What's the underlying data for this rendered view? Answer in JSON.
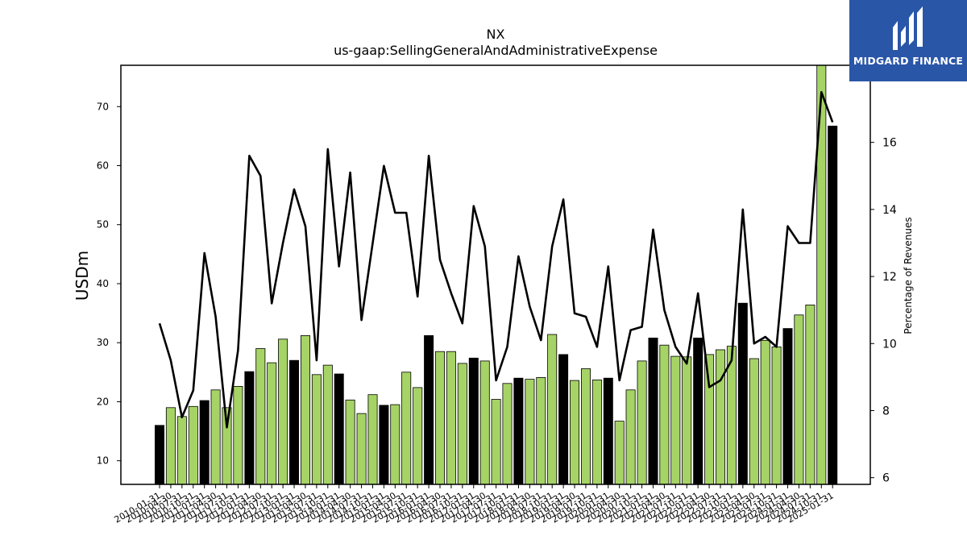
{
  "chart_data": {
    "type": "bar",
    "title": "NX",
    "subtitle": "us-gaap:SellingGeneralAndAdministrativeExpense",
    "ylabel": "USDm",
    "y2label": "Percentage of Revenues",
    "ylim": [
      6,
      77
    ],
    "y2lim": [
      5.8,
      18.3
    ],
    "yticks": [
      10,
      20,
      30,
      40,
      50,
      60,
      70
    ],
    "y2ticks": [
      6,
      8,
      10,
      12,
      14,
      16
    ],
    "x": [
      "2010-01-31",
      "2010-04-30",
      "2010-07-31",
      "2010-10-31",
      "2011-01-31",
      "2011-04-30",
      "2011-07-31",
      "2011-10-31",
      "2012-01-31",
      "2012-04-30",
      "2012-07-31",
      "2012-10-31",
      "2013-01-31",
      "2013-04-30",
      "2013-07-31",
      "2013-10-31",
      "2014-01-31",
      "2014-04-30",
      "2014-07-31",
      "2014-10-31",
      "2015-01-31",
      "2015-04-30",
      "2015-07-31",
      "2015-10-31",
      "2016-01-31",
      "2016-04-30",
      "2016-07-31",
      "2016-10-31",
      "2017-01-31",
      "2017-04-30",
      "2017-07-31",
      "2017-10-31",
      "2018-01-31",
      "2018-04-30",
      "2018-07-31",
      "2018-10-31",
      "2019-01-31",
      "2019-04-30",
      "2019-07-31",
      "2019-10-31",
      "2020-01-31",
      "2020-04-30",
      "2020-07-31",
      "2020-10-31",
      "2021-01-31",
      "2021-04-30",
      "2021-07-31",
      "2021-10-31",
      "2022-01-31",
      "2022-04-30",
      "2022-07-31",
      "2022-10-31",
      "2023-01-31",
      "2023-04-30",
      "2023-07-31",
      "2023-10-31",
      "2024-01-31",
      "2024-04-30",
      "2024-07-31",
      "2024-10-31",
      "2025-01-31"
    ],
    "series": [
      {
        "kind": "bar",
        "axis": "left",
        "values": [
          16.0,
          19.0,
          17.5,
          19.2,
          20.2,
          22.0,
          19.0,
          22.6,
          25.1,
          29.0,
          26.6,
          30.6,
          27.0,
          31.2,
          24.6,
          26.2,
          24.7,
          20.3,
          18.0,
          21.2,
          19.4,
          19.5,
          25.0,
          22.4,
          31.2,
          28.5,
          28.5,
          26.5,
          27.4,
          26.9,
          20.4,
          23.1,
          24.0,
          23.8,
          24.1,
          31.4,
          28.0,
          23.6,
          25.6,
          23.7,
          24.0,
          16.7,
          22.0,
          26.9,
          30.8,
          29.6,
          27.7,
          27.6,
          30.8,
          28.0,
          28.8,
          29.4,
          36.7,
          27.3,
          30.4,
          29.3,
          32.4,
          34.7,
          36.4,
          77.0,
          66.7
        ],
        "fill_colors": [
          "#000000",
          "#a6d366"
        ]
      },
      {
        "kind": "line",
        "axis": "right",
        "color": "#000000",
        "values": [
          10.6,
          9.5,
          7.8,
          8.6,
          12.7,
          10.8,
          7.5,
          9.8,
          15.6,
          15.0,
          11.2,
          13.0,
          14.6,
          13.5,
          9.5,
          15.8,
          12.3,
          15.1,
          10.7,
          13.0,
          15.3,
          13.9,
          13.9,
          11.4,
          15.6,
          12.5,
          11.5,
          10.6,
          14.1,
          12.9,
          8.9,
          9.9,
          12.6,
          11.1,
          10.1,
          12.9,
          14.3,
          10.9,
          10.8,
          9.9,
          12.3,
          8.9,
          10.4,
          10.5,
          13.4,
          11.0,
          9.9,
          9.4,
          11.5,
          8.7,
          8.9,
          9.5,
          14.0,
          10.0,
          10.2,
          9.9,
          13.5,
          13.0,
          13.0,
          17.5,
          16.6
        ]
      }
    ],
    "legend": "none",
    "grid": false
  },
  "logo": {
    "text": "MIDGARD FINANCE",
    "background": "#2a56a8"
  }
}
